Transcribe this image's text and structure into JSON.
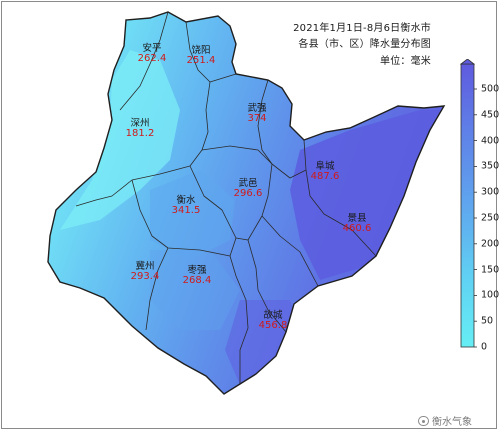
{
  "title": {
    "line1": "2021年1月1日-8月6日衡水市",
    "line2": "各县（市、区）降水量分布图",
    "unit": "单位：毫米"
  },
  "counties": [
    {
      "name": "安平",
      "value": "262.4"
    },
    {
      "name": "饶阳",
      "value": "251.4"
    },
    {
      "name": "深州",
      "value": "181.2"
    },
    {
      "name": "武强",
      "value": "374"
    },
    {
      "name": "阜城",
      "value": "487.6"
    },
    {
      "name": "衡水",
      "value": "341.5"
    },
    {
      "name": "武邑",
      "value": "296.6"
    },
    {
      "name": "景县",
      "value": "460.6"
    },
    {
      "name": "冀州",
      "value": "293.4"
    },
    {
      "name": "枣强",
      "value": "268.4"
    },
    {
      "name": "故城",
      "value": "456.8"
    }
  ],
  "legend": {
    "ticks": [
      "0",
      "50",
      "100",
      "150",
      "200",
      "250",
      "300",
      "350",
      "400",
      "450",
      "500"
    ],
    "color_low": "#66eef4",
    "color_high": "#5f5bdf"
  },
  "watermark": {
    "text": "衡水气象",
    "icon": "wechat-icon"
  }
}
